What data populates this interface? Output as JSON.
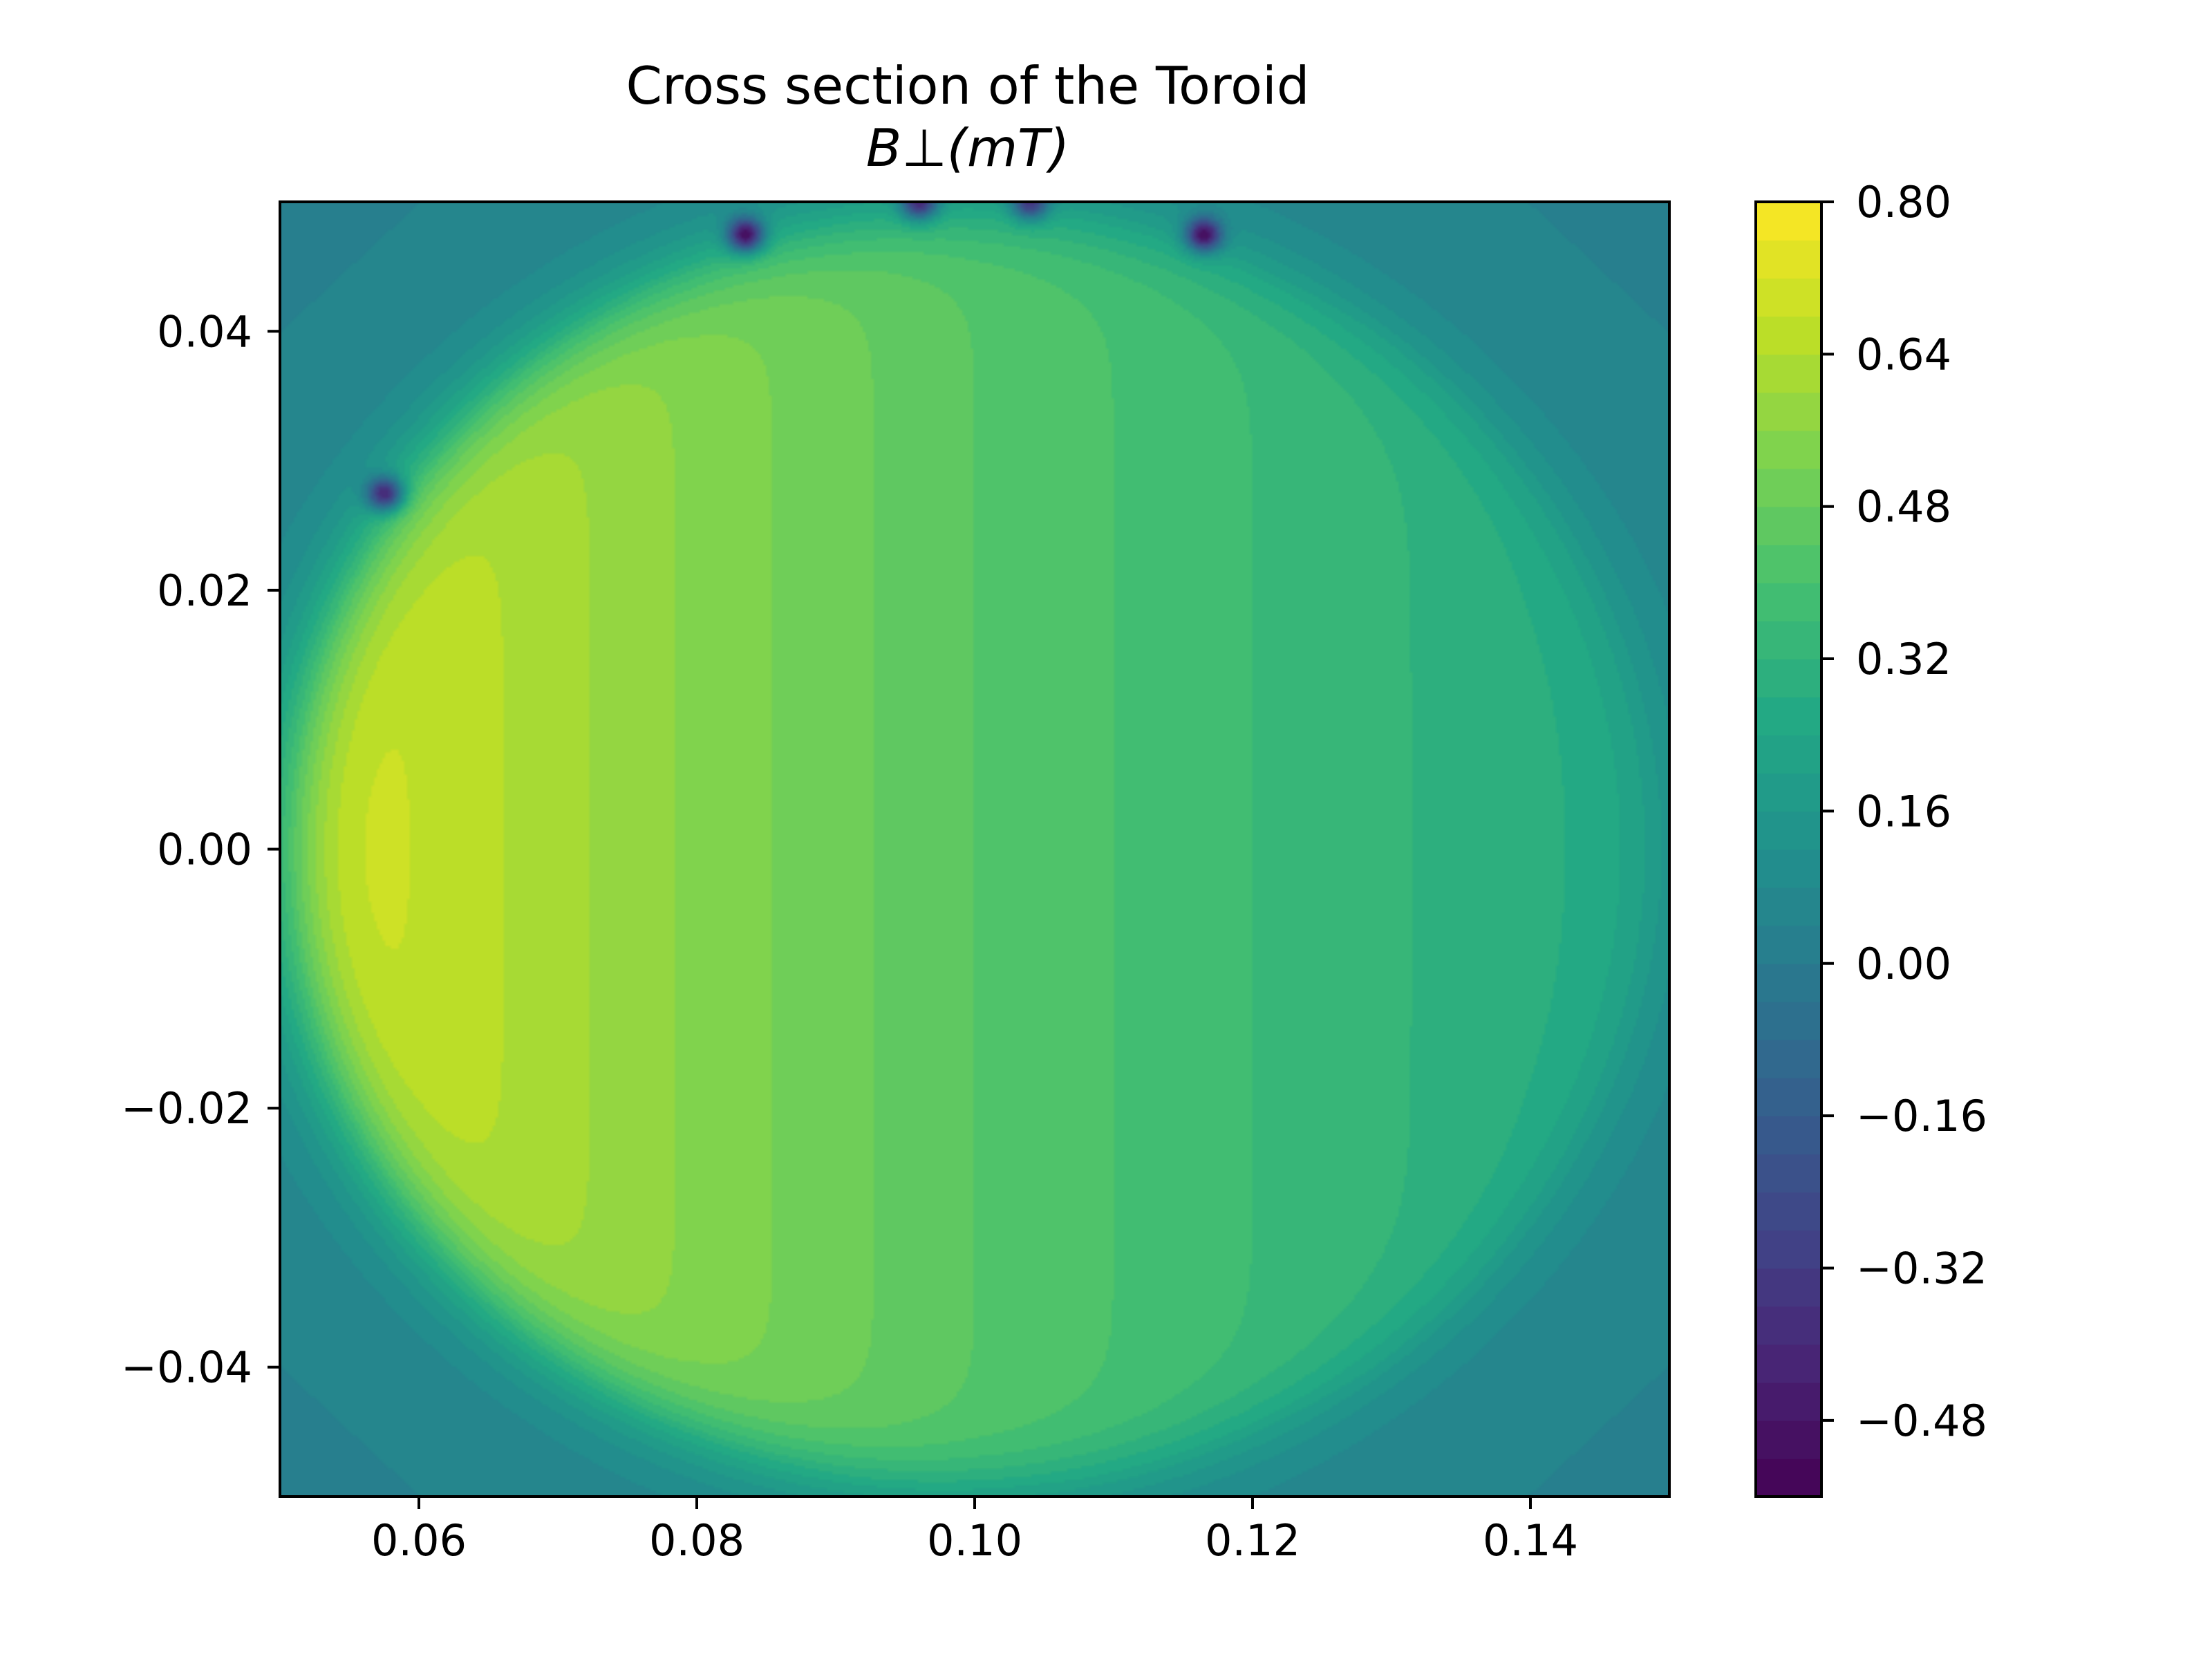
{
  "chart_data": {
    "type": "heatmap",
    "subtype": "filled-contour",
    "title": "Cross section of the Toroid",
    "subtitle": "B⊥(mT)",
    "xlabel": "",
    "ylabel": "",
    "xlim": [
      0.05,
      0.15
    ],
    "ylim": [
      -0.05,
      0.05
    ],
    "x_ticks": [
      0.06,
      0.08,
      0.1,
      0.12,
      0.14
    ],
    "x_tick_labels": [
      "0.06",
      "0.08",
      "0.10",
      "0.12",
      "0.14"
    ],
    "y_ticks": [
      -0.04,
      -0.02,
      0.0,
      0.02,
      0.04
    ],
    "y_tick_labels": [
      "−0.04",
      "−0.02",
      "0.00",
      "0.02",
      "0.04"
    ],
    "colormap": "viridis",
    "colorbar": {
      "range": [
        -0.56,
        0.8
      ],
      "ticks": [
        -0.48,
        -0.32,
        -0.16,
        0.0,
        0.16,
        0.32,
        0.48,
        0.64,
        0.8
      ],
      "tick_labels": [
        "−0.48",
        "−0.32",
        "−0.16",
        "0.00",
        "0.16",
        "0.32",
        "0.48",
        "0.64",
        "0.80"
      ],
      "levels": 34
    },
    "field": {
      "description_units": "mT",
      "disk_center": [
        0.1,
        0.0
      ],
      "disk_radius": 0.05,
      "inside_profile": {
        "x": [
          0.05,
          0.06,
          0.08,
          0.1,
          0.12,
          0.14,
          0.15
        ],
        "value": [
          0.76,
          0.68,
          0.55,
          0.44,
          0.36,
          0.29,
          0.27
        ]
      },
      "outside_value": 0.07,
      "dark_spots": [
        {
          "x": 0.0835,
          "y": 0.0475,
          "value": -0.52
        },
        {
          "x": 0.1165,
          "y": 0.0475,
          "value": -0.52
        },
        {
          "x": 0.0575,
          "y": 0.0275,
          "value": -0.4
        },
        {
          "x": 0.096,
          "y": 0.05,
          "value": -0.4
        },
        {
          "x": 0.104,
          "y": 0.05,
          "value": -0.35
        }
      ]
    }
  },
  "colors": {
    "axes": "#000000",
    "background": "#ffffff"
  }
}
